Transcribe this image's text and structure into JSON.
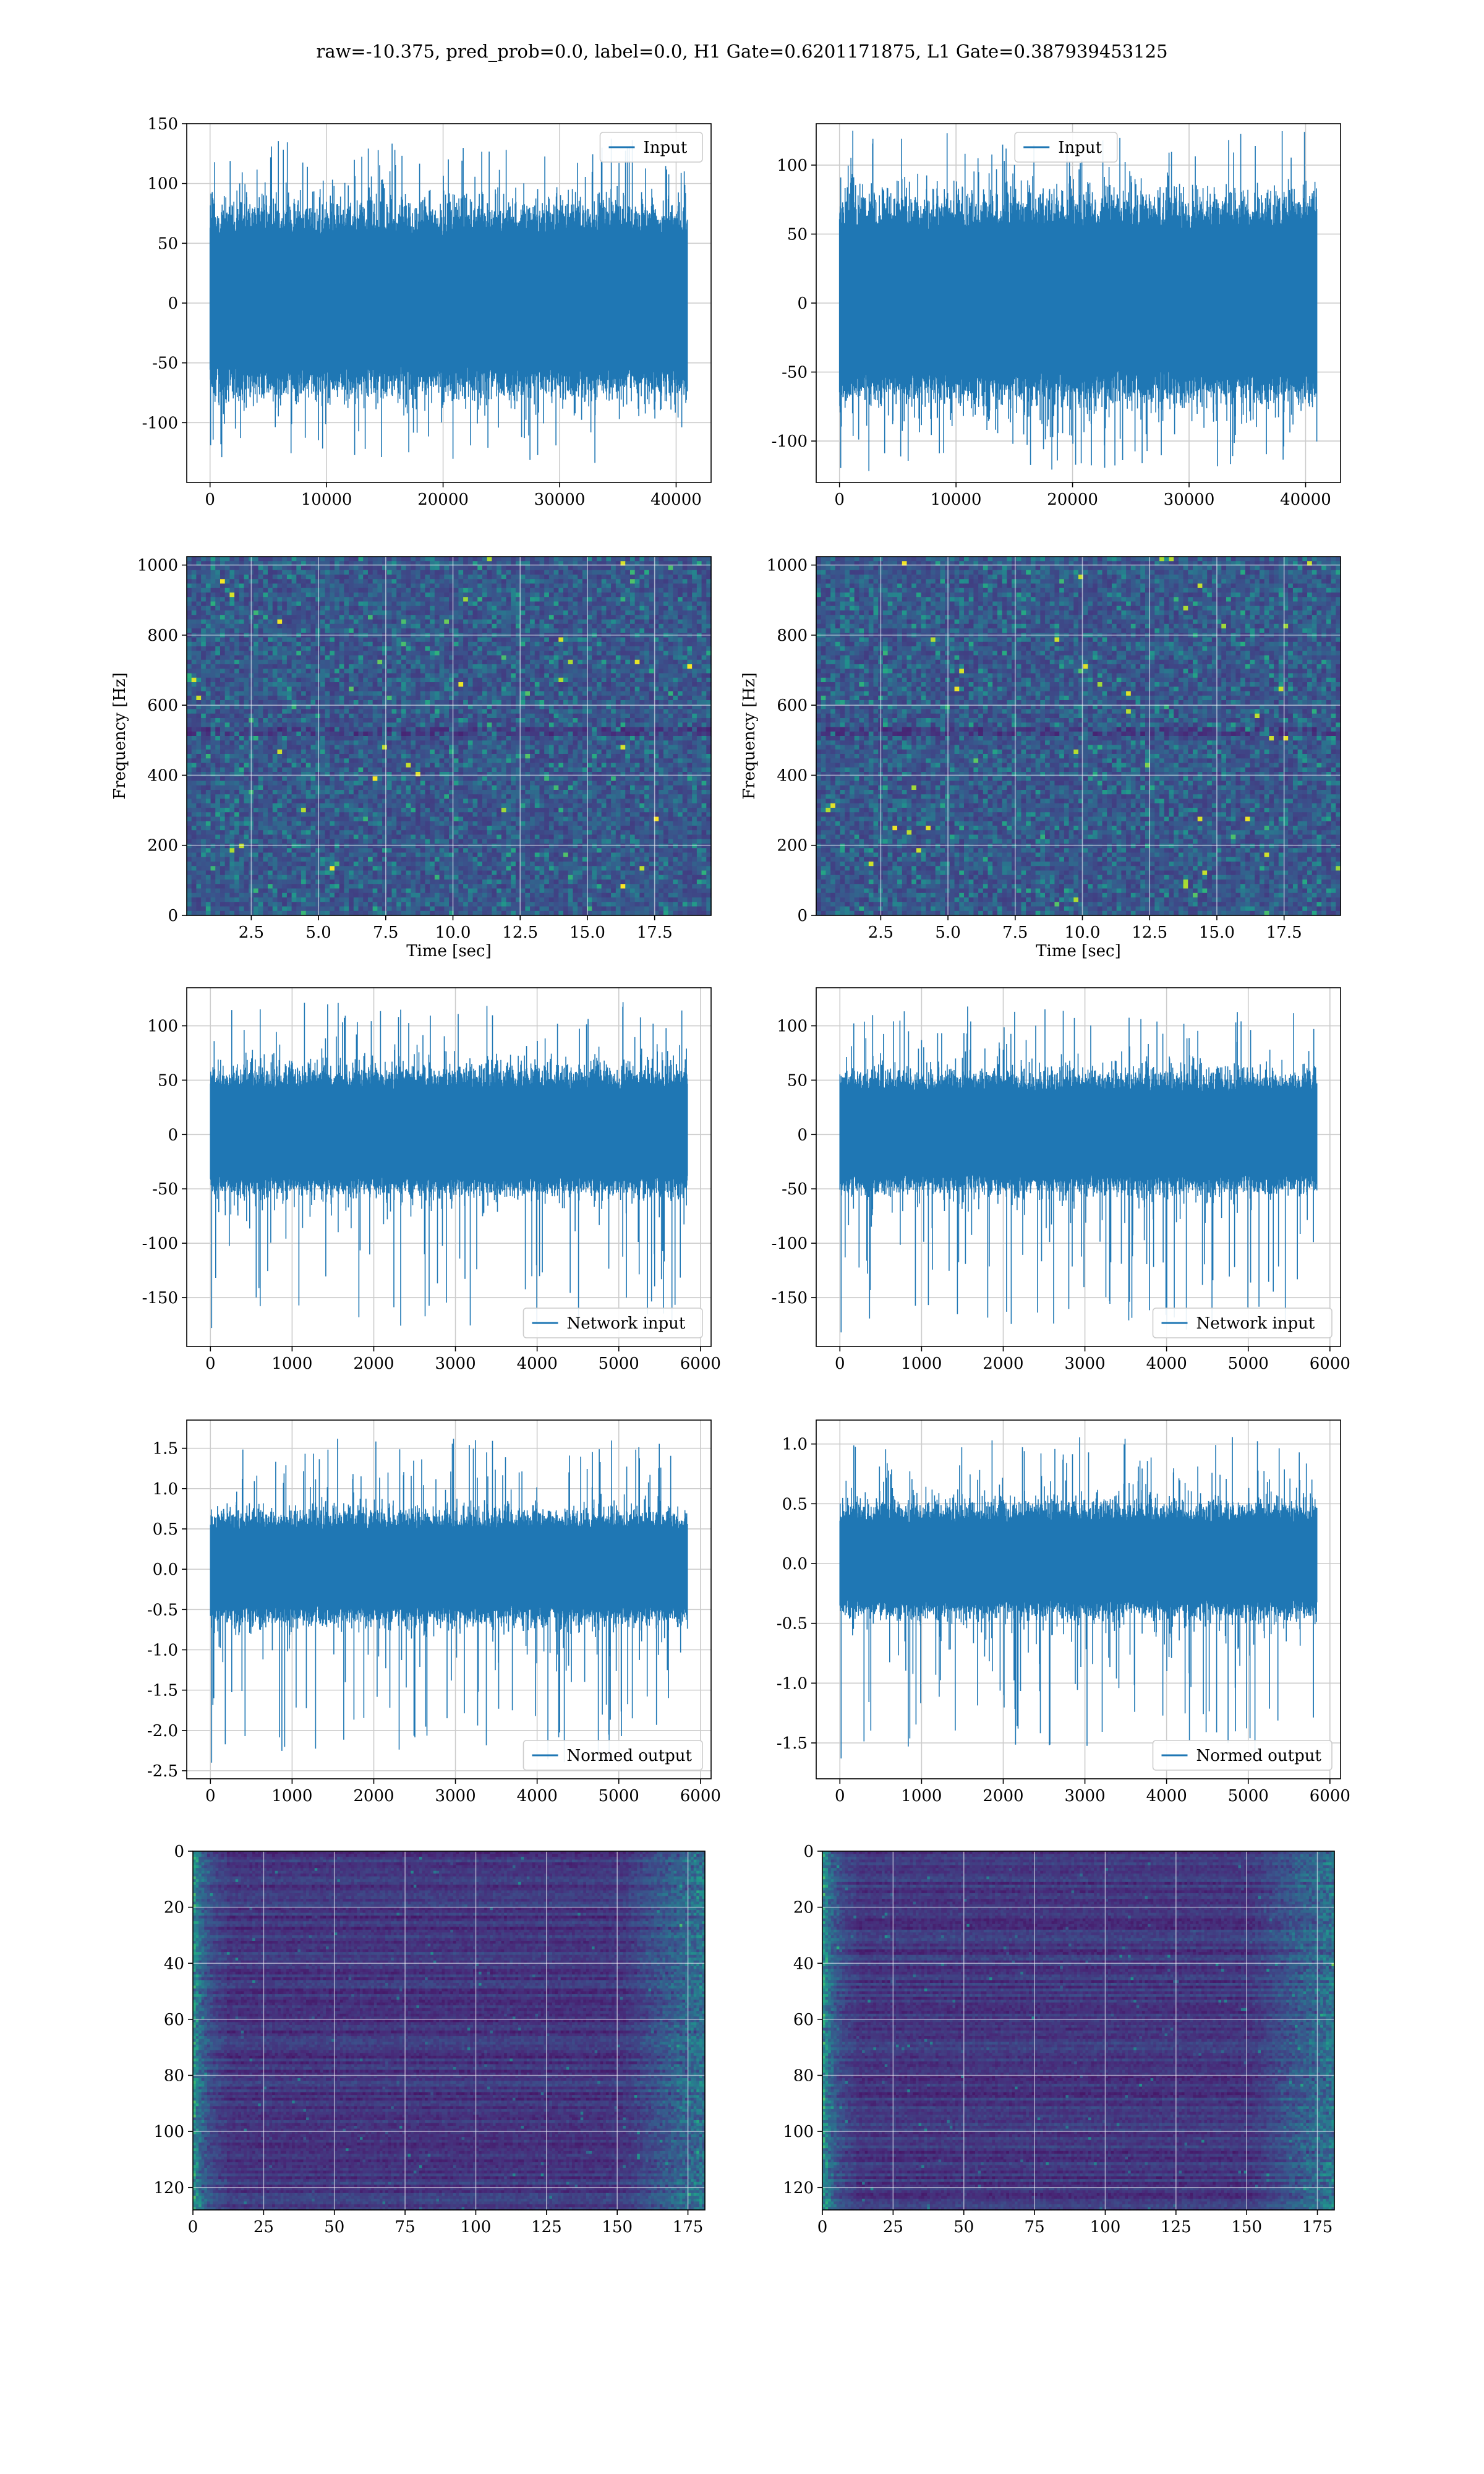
{
  "title": "raw=-10.375, pred_prob=0.0, label=0.0, H1 Gate=0.6201171875, L1 Gate=0.387939453125",
  "chart_data": [
    {
      "id": "h1-input",
      "type": "line",
      "series": [
        {
          "name": "Input",
          "color": "#1f77b4",
          "length": 40960,
          "envelope_typical": [
            -70,
            75
          ],
          "extremes": [
            -135,
            138
          ]
        }
      ],
      "xlim": [
        -2000,
        43000
      ],
      "xticks": [
        0,
        10000,
        20000,
        30000,
        40000
      ],
      "ylim": [
        -150,
        150
      ],
      "yticks": [
        -100,
        -50,
        0,
        50,
        100,
        150
      ],
      "legend": "upper right",
      "grid": true,
      "xlabel": "",
      "ylabel": ""
    },
    {
      "id": "l1-input",
      "type": "line",
      "series": [
        {
          "name": "Input",
          "color": "#1f77b4",
          "length": 40960,
          "envelope_typical": [
            -65,
            70
          ],
          "extremes": [
            -122,
            125
          ]
        }
      ],
      "xlim": [
        -2000,
        43000
      ],
      "xticks": [
        0,
        10000,
        20000,
        30000,
        40000
      ],
      "ylim": [
        -130,
        130
      ],
      "yticks": [
        -100,
        -50,
        0,
        50,
        100
      ],
      "legend": "upper center",
      "grid": true,
      "xlabel": "",
      "ylabel": ""
    },
    {
      "id": "h1-spectrogram",
      "type": "heatmap",
      "colormap": "viridis",
      "xlabel": "Time [sec]",
      "ylabel": "Frequency [Hz]",
      "xlim": [
        0.1,
        19.6
      ],
      "xticks": [
        2.5,
        5.0,
        7.5,
        10.0,
        12.5,
        15.0,
        17.5
      ],
      "ylim": [
        0,
        1024
      ],
      "yticks": [
        0,
        200,
        400,
        600,
        800,
        1000
      ],
      "grid": true
    },
    {
      "id": "l1-spectrogram",
      "type": "heatmap",
      "colormap": "viridis",
      "xlabel": "Time [sec]",
      "ylabel": "Frequency [Hz]",
      "xlim": [
        0.1,
        19.6
      ],
      "xticks": [
        2.5,
        5.0,
        7.5,
        10.0,
        12.5,
        15.0,
        17.5
      ],
      "ylim": [
        0,
        1024
      ],
      "yticks": [
        0,
        200,
        400,
        600,
        800,
        1000
      ],
      "grid": true
    },
    {
      "id": "h1-network-input",
      "type": "line",
      "series": [
        {
          "name": "Network input",
          "color": "#1f77b4",
          "length": 5840,
          "envelope_typical": [
            -50,
            55
          ],
          "extremes": [
            -178,
            122
          ]
        }
      ],
      "xlim": [
        -290,
        6130
      ],
      "xticks": [
        0,
        1000,
        2000,
        3000,
        4000,
        5000,
        6000
      ],
      "ylim": [
        -195,
        135
      ],
      "yticks": [
        -150,
        -100,
        -50,
        0,
        50,
        100
      ],
      "legend": "lower right",
      "grid": true,
      "xlabel": "",
      "ylabel": ""
    },
    {
      "id": "l1-network-input",
      "type": "line",
      "series": [
        {
          "name": "Network input",
          "color": "#1f77b4",
          "length": 5840,
          "envelope_typical": [
            -48,
            52
          ],
          "extremes": [
            -182,
            118
          ]
        }
      ],
      "xlim": [
        -290,
        6130
      ],
      "xticks": [
        0,
        1000,
        2000,
        3000,
        4000,
        5000,
        6000
      ],
      "ylim": [
        -195,
        135
      ],
      "yticks": [
        -150,
        -100,
        -50,
        0,
        50,
        100
      ],
      "legend": "lower right",
      "grid": true,
      "xlabel": "",
      "ylabel": ""
    },
    {
      "id": "h1-normed-output",
      "type": "line",
      "series": [
        {
          "name": "Normed output",
          "color": "#1f77b4",
          "length": 5840,
          "envelope_typical": [
            -0.6,
            0.65
          ],
          "extremes": [
            -2.4,
            1.62
          ]
        }
      ],
      "xlim": [
        -290,
        6130
      ],
      "xticks": [
        0,
        1000,
        2000,
        3000,
        4000,
        5000,
        6000
      ],
      "ylim": [
        -2.6,
        1.85
      ],
      "yticks": [
        -2.5,
        -2.0,
        -1.5,
        -1.0,
        -0.5,
        0.0,
        0.5,
        1.0,
        1.5
      ],
      "legend": "lower right",
      "grid": true,
      "xlabel": "",
      "ylabel": ""
    },
    {
      "id": "l1-normed-output",
      "type": "line",
      "series": [
        {
          "name": "Normed output",
          "color": "#1f77b4",
          "length": 5840,
          "envelope_typical": [
            -0.4,
            0.45
          ],
          "extremes": [
            -1.63,
            1.06
          ]
        }
      ],
      "xlim": [
        -290,
        6130
      ],
      "xticks": [
        0,
        1000,
        2000,
        3000,
        4000,
        5000,
        6000
      ],
      "ylim": [
        -1.8,
        1.2
      ],
      "yticks": [
        -1.5,
        -1.0,
        -0.5,
        0.0,
        0.5,
        1.0
      ],
      "legend": "lower right",
      "grid": true,
      "xlabel": "",
      "ylabel": ""
    },
    {
      "id": "h1-feature-map",
      "type": "heatmap",
      "colormap": "viridis",
      "xlim": [
        0,
        181
      ],
      "xticks": [
        0,
        25,
        50,
        75,
        100,
        125,
        150,
        175
      ],
      "ylim": [
        128,
        0
      ],
      "yticks": [
        0,
        20,
        40,
        60,
        80,
        100,
        120
      ],
      "grid": true,
      "xlabel": "",
      "ylabel": ""
    },
    {
      "id": "l1-feature-map",
      "type": "heatmap",
      "colormap": "viridis",
      "xlim": [
        0,
        181
      ],
      "xticks": [
        0,
        25,
        50,
        75,
        100,
        125,
        150,
        175
      ],
      "ylim": [
        128,
        0
      ],
      "yticks": [
        0,
        20,
        40,
        60,
        80,
        100,
        120
      ],
      "grid": true,
      "xlabel": "",
      "ylabel": ""
    }
  ]
}
